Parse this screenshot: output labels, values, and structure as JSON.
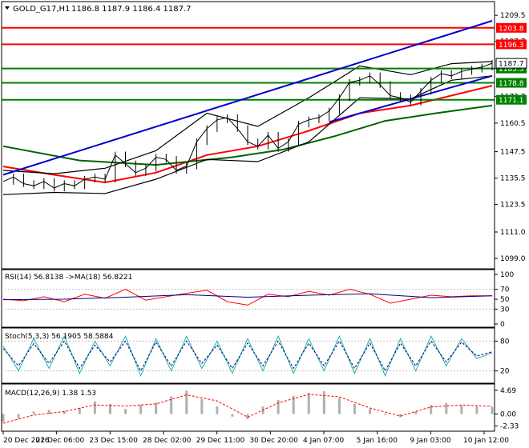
{
  "title": {
    "symbol": "GOLD_G17,H1",
    "ohlc": "1186.8 1187.9 1186.4 1187.7"
  },
  "colors": {
    "price": "#000000",
    "bollinger": "#000000",
    "ma_red": "#ff0000",
    "ma_green": "#006400",
    "channel": "#0000cd",
    "resistance": "#ff0000",
    "support": "#008000",
    "rsi": "#ff0000",
    "rsi_ma": "#000080",
    "stoch_main": "#20b2aa",
    "stoch_signal": "#000080",
    "macd_hist": "#b0b0b0",
    "macd_signal": "#ff0000"
  },
  "chart_data": [
    {
      "type": "line",
      "panel": "price",
      "y_ticks": [
        "1209.5",
        "1197.7",
        "1185.3",
        "1172.7",
        "1160.5",
        "1147.5",
        "1135.5",
        "1123.5",
        "1111.0",
        "1099.0"
      ],
      "ylim": [
        1095.0,
        1215.0
      ],
      "x_ticks": [
        "20 Dec 2016",
        "22 Dec 06:00",
        "23 Dec 15:00",
        "28 Dec 02:00",
        "29 Dec 11:00",
        "30 Dec 20:00",
        "4 Jan 07:00",
        "5 Jan 16:00",
        "9 Jan 03:00",
        "10 Jan 12:00"
      ],
      "price_series": {
        "name": "GOLD_G17,H1",
        "x": [
          0,
          4,
          8,
          12,
          16,
          20,
          24,
          28,
          32,
          36,
          40,
          44,
          48,
          52,
          56,
          60,
          64,
          68,
          72,
          76,
          80,
          84,
          88,
          92,
          96,
          100,
          104,
          108,
          112,
          116,
          120,
          124,
          128,
          132,
          136,
          140,
          144,
          148,
          152,
          156,
          160,
          164,
          168,
          172,
          176,
          180,
          184,
          188,
          192
        ],
        "values": [
          1134,
          1136,
          1133,
          1132,
          1134,
          1131,
          1133,
          1132,
          1135,
          1136,
          1135,
          1146,
          1142,
          1138,
          1140,
          1145,
          1144,
          1139,
          1141,
          1152,
          1158,
          1162,
          1163,
          1158,
          1152,
          1150,
          1155,
          1149,
          1152,
          1160,
          1162,
          1163,
          1166,
          1172,
          1179,
          1180,
          1182,
          1178,
          1173,
          1172,
          1170,
          1175,
          1180,
          1183,
          1182,
          1184,
          1185,
          1186,
          1187.7
        ]
      },
      "overlays": [
        {
          "name": "",
          "color_key": "ma_red",
          "x": [
            0,
            20,
            40,
            60,
            80,
            100,
            120,
            140,
            160,
            176,
            192
          ],
          "values": [
            1140.8,
            1137.0,
            1133.5,
            1138.0,
            1146.0,
            1150.0,
            1157.0,
            1165.0,
            1168.5,
            1173.0,
            1177.5
          ]
        },
        {
          "name": "",
          "color_key": "ma_green",
          "x": [
            0,
            30,
            60,
            90,
            110,
            130,
            150,
            170,
            192
          ],
          "values": [
            1150.0,
            1143.5,
            1141.5,
            1145.0,
            1148.5,
            1154.5,
            1161.5,
            1165.0,
            1168.5
          ]
        },
        {
          "name": "",
          "color_key": "bollinger",
          "x": [
            0,
            20,
            40,
            60,
            80,
            100,
            120,
            140,
            160,
            176,
            192
          ],
          "values": [
            1139.0,
            1137.5,
            1140.0,
            1148.0,
            1165.0,
            1159.0,
            1172.0,
            1186.5,
            1182.5,
            1187.5,
            1188.5
          ]
        },
        {
          "name": "",
          "color_key": "bollinger",
          "x": [
            0,
            20,
            40,
            60,
            80,
            100,
            120,
            140,
            160,
            176,
            192
          ],
          "values": [
            1128.0,
            1129.0,
            1128.5,
            1135.0,
            1144.0,
            1143.0,
            1152.0,
            1172.0,
            1171.5,
            1180.0,
            1182.0
          ]
        }
      ],
      "trend_lines": [
        {
          "name": "",
          "color_key": "channel",
          "x": [
            0,
            192
          ],
          "values": [
            1137.0,
            1207.0
          ]
        },
        {
          "name": "",
          "color_key": "channel",
          "x": [
            128,
            192
          ],
          "values": [
            1161.0,
            1182.0
          ]
        }
      ],
      "h_lines": [
        {
          "value": 1203.8,
          "label": "1203.8",
          "color_key": "resistance"
        },
        {
          "value": 1196.3,
          "label": "1196.3",
          "color_key": "resistance"
        },
        {
          "value": 1185.3,
          "label": "1185.3",
          "color_key": "support"
        },
        {
          "value": 1178.8,
          "label": "1178.8",
          "color_key": "support"
        },
        {
          "value": 1171.1,
          "label": "1171.1",
          "color_key": "support"
        }
      ],
      "current_price_label": "1187.7"
    },
    {
      "type": "line",
      "panel": "rsi",
      "title": "RSI(14) 56.8138  ->MA(18) 56.8221",
      "y_ticks": [
        "100",
        "70",
        "50",
        "30",
        "0"
      ],
      "ylim": [
        0,
        100
      ],
      "series": [
        {
          "name": "RSI(14)",
          "color_key": "rsi",
          "x": [
            0,
            8,
            16,
            24,
            32,
            40,
            48,
            56,
            64,
            72,
            80,
            88,
            96,
            104,
            112,
            120,
            128,
            136,
            144,
            152,
            160,
            168,
            176,
            184,
            192
          ],
          "values": [
            50,
            47,
            55,
            45,
            60,
            52,
            70,
            48,
            55,
            62,
            68,
            45,
            38,
            60,
            55,
            66,
            58,
            70,
            60,
            42,
            50,
            58,
            55,
            57,
            56.8
          ]
        },
        {
          "name": "MA(18)",
          "color_key": "rsi_ma",
          "x": [
            0,
            24,
            48,
            72,
            96,
            120,
            144,
            168,
            192
          ],
          "values": [
            49,
            50,
            54,
            59,
            54,
            58,
            61,
            53,
            56.8
          ]
        }
      ]
    },
    {
      "type": "line",
      "panel": "stoch",
      "title": "Stoch(5,3,3) 56.1905 58.5884",
      "y_ticks": [
        "80",
        "20"
      ],
      "ylim": [
        0,
        100
      ],
      "series": [
        {
          "name": "Stoch(5,3,3)",
          "color_key": "stoch_main",
          "x": [
            0,
            6,
            12,
            18,
            24,
            30,
            36,
            42,
            48,
            54,
            60,
            66,
            72,
            78,
            84,
            90,
            96,
            102,
            108,
            114,
            120,
            126,
            132,
            138,
            144,
            150,
            156,
            162,
            168,
            174,
            180,
            186,
            192
          ],
          "values": [
            70,
            20,
            85,
            25,
            90,
            15,
            80,
            30,
            90,
            10,
            85,
            20,
            90,
            25,
            80,
            15,
            85,
            20,
            90,
            15,
            85,
            20,
            90,
            15,
            85,
            10,
            85,
            20,
            90,
            30,
            85,
            45,
            56.2
          ]
        },
        {
          "name": "",
          "color_key": "stoch_signal",
          "x": [
            0,
            6,
            12,
            18,
            24,
            30,
            36,
            42,
            48,
            54,
            60,
            66,
            72,
            78,
            84,
            90,
            96,
            102,
            108,
            114,
            120,
            126,
            132,
            138,
            144,
            150,
            156,
            162,
            168,
            174,
            180,
            186,
            192
          ],
          "values": [
            65,
            30,
            75,
            35,
            80,
            25,
            72,
            38,
            80,
            20,
            78,
            30,
            80,
            35,
            72,
            25,
            76,
            30,
            80,
            25,
            76,
            30,
            80,
            25,
            76,
            20,
            76,
            30,
            80,
            38,
            78,
            50,
            58.6
          ]
        }
      ]
    },
    {
      "type": "bar",
      "panel": "macd",
      "title": "MACD(12,26,9) 1.38 1.53",
      "y_ticks": [
        "4.69",
        "0.00",
        "-2.33"
      ],
      "ylim": [
        -2.9,
        5.3
      ],
      "histogram": {
        "name": "MACD(12,26,9)",
        "color_key": "macd_hist",
        "x": [
          0,
          6,
          12,
          18,
          24,
          30,
          36,
          42,
          48,
          54,
          60,
          66,
          72,
          78,
          84,
          90,
          96,
          102,
          108,
          114,
          120,
          126,
          132,
          138,
          144,
          150,
          156,
          162,
          168,
          174,
          180,
          186,
          192
        ],
        "values": [
          -1.5,
          -0.8,
          0.5,
          0.8,
          0.6,
          1.2,
          2.5,
          2.0,
          1.0,
          1.8,
          2.2,
          3.5,
          4.6,
          3.0,
          1.5,
          -0.5,
          -1.0,
          1.5,
          2.8,
          3.6,
          4.2,
          4.5,
          3.2,
          2.0,
          1.0,
          -0.2,
          -0.6,
          0.5,
          1.8,
          2.2,
          1.7,
          1.5,
          1.38
        ]
      },
      "signal": {
        "name": "",
        "color_key": "macd_signal",
        "x": [
          0,
          12,
          24,
          36,
          48,
          60,
          72,
          84,
          96,
          108,
          120,
          132,
          144,
          156,
          168,
          180,
          192
        ],
        "values": [
          -1.8,
          -0.2,
          0.5,
          1.8,
          1.6,
          2.0,
          3.8,
          2.6,
          -0.6,
          2.2,
          3.9,
          3.4,
          1.2,
          -0.4,
          1.4,
          1.8,
          1.53
        ]
      }
    }
  ]
}
